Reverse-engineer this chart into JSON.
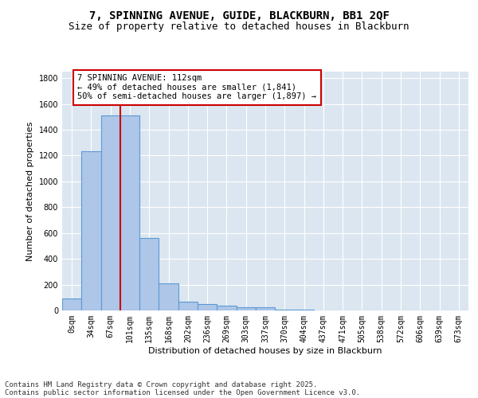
{
  "title1": "7, SPINNING AVENUE, GUIDE, BLACKBURN, BB1 2QF",
  "title2": "Size of property relative to detached houses in Blackburn",
  "xlabel": "Distribution of detached houses by size in Blackburn",
  "ylabel": "Number of detached properties",
  "bar_labels": [
    "0sqm",
    "34sqm",
    "67sqm",
    "101sqm",
    "135sqm",
    "168sqm",
    "202sqm",
    "236sqm",
    "269sqm",
    "303sqm",
    "337sqm",
    "370sqm",
    "404sqm",
    "437sqm",
    "471sqm",
    "505sqm",
    "538sqm",
    "572sqm",
    "606sqm",
    "639sqm",
    "673sqm"
  ],
  "bar_values": [
    95,
    1235,
    1510,
    1510,
    560,
    210,
    65,
    48,
    38,
    27,
    22,
    8,
    4,
    3,
    2,
    1,
    0,
    0,
    0,
    0,
    0
  ],
  "bar_color": "#aec6e8",
  "bar_edge_color": "#5b9bd5",
  "background_color": "#dce6f0",
  "ylim": [
    0,
    1850
  ],
  "yticks": [
    0,
    200,
    400,
    600,
    800,
    1000,
    1200,
    1400,
    1600,
    1800
  ],
  "annotation_box_text": "7 SPINNING AVENUE: 112sqm\n← 49% of detached houses are smaller (1,841)\n50% of semi-detached houses are larger (1,897) →",
  "vline_bar_index": 2.5,
  "vline_color": "#cc0000",
  "footer1": "Contains HM Land Registry data © Crown copyright and database right 2025.",
  "footer2": "Contains public sector information licensed under the Open Government Licence v3.0.",
  "title_fontsize": 10,
  "subtitle_fontsize": 9,
  "axis_label_fontsize": 8,
  "tick_fontsize": 7,
  "annotation_fontsize": 7.5,
  "footer_fontsize": 6.5
}
